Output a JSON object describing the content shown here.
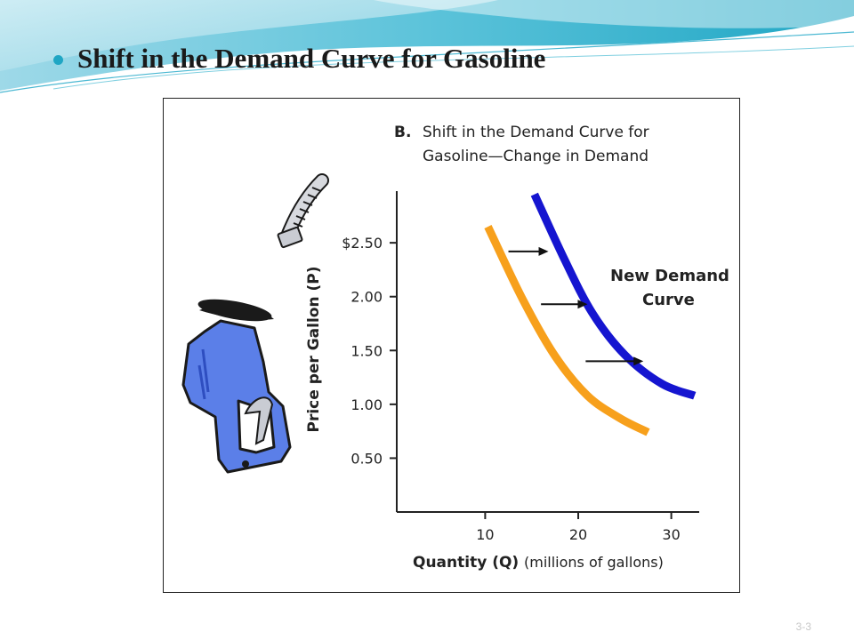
{
  "slide": {
    "title": "Shift in the Demand Curve for Gasoline",
    "page_number": "3-3"
  },
  "colors": {
    "accent": "#1fa6c4",
    "original_curve": "#f7a01c",
    "new_curve": "#1515d0",
    "pump_body": "#5b7fe8"
  },
  "icons": {
    "illustration": "gas-pump-nozzle-icon",
    "bullet": "bullet-dot-icon"
  },
  "chart_data": {
    "type": "line",
    "panel_label": "B.",
    "title_line1": "Shift in the Demand Curve for",
    "title_line2": "Gasoline—Change in Demand",
    "xlabel_bold": "Quantity (Q)",
    "xlabel_rest": "(millions of gallons)",
    "ylabel": "Price per Gallon (P)",
    "xlim": [
      0.5,
      33
    ],
    "ylim": [
      0,
      2.98
    ],
    "x_ticks": [
      10,
      20,
      30
    ],
    "x_tick_labels": [
      "10",
      "20",
      "30"
    ],
    "y_ticks": [
      0.5,
      1.0,
      1.5,
      2.0,
      2.5
    ],
    "y_tick_labels": [
      "0.50",
      "1.00",
      "1.50",
      "2.00",
      "$2.50"
    ],
    "grid": false,
    "series": [
      {
        "name": "",
        "color": "#f7a01c",
        "points": [
          [
            10.3,
            2.65
          ],
          [
            14,
            1.98
          ],
          [
            17.5,
            1.45
          ],
          [
            21,
            1.08
          ],
          [
            24.5,
            0.87
          ],
          [
            27.5,
            0.74
          ]
        ]
      },
      {
        "name": "New Demand Curve",
        "color": "#1515d0",
        "points": [
          [
            15.3,
            2.95
          ],
          [
            18.5,
            2.35
          ],
          [
            21.5,
            1.85
          ],
          [
            25,
            1.46
          ],
          [
            29,
            1.19
          ],
          [
            32.5,
            1.08
          ]
        ]
      }
    ],
    "annotation_line1": "New Demand",
    "annotation_line2": "Curve",
    "shift_arrows": [
      {
        "y": 2.42,
        "x_from": 12.5,
        "x_to": 16.8
      },
      {
        "y": 1.93,
        "x_from": 16.0,
        "x_to": 21.0
      },
      {
        "y": 1.4,
        "x_from": 20.8,
        "x_to": 27.0
      }
    ]
  }
}
